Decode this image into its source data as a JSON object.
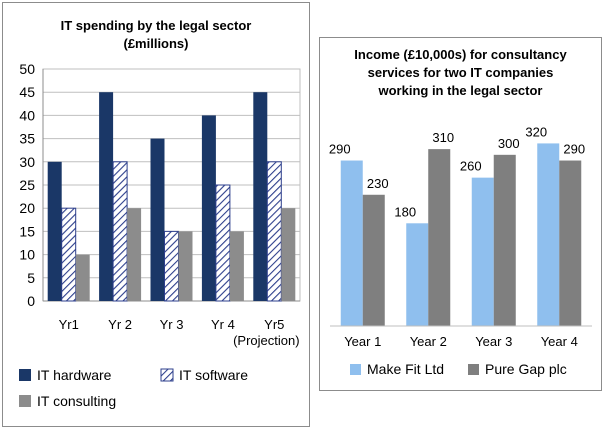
{
  "chart_data": [
    {
      "type": "bar",
      "title_lines": [
        "IT spending by the legal sector",
        "(£millions)"
      ],
      "categories": [
        "Yr1",
        "Yr 2",
        "Yr 3",
        "Yr 4",
        "Yr5"
      ],
      "category_note": "(Projection)",
      "series": [
        {
          "name": "IT hardware",
          "values": [
            30,
            45,
            35,
            40,
            45
          ],
          "color": "#1a3767",
          "pattern": "solid"
        },
        {
          "name": "IT software",
          "values": [
            20,
            30,
            15,
            25,
            30
          ],
          "color": "#2d3f8c",
          "pattern": "hatch"
        },
        {
          "name": "IT consulting",
          "values": [
            10,
            20,
            15,
            15,
            20
          ],
          "color": "#8c8c8c",
          "pattern": "solid"
        }
      ],
      "ylim": [
        0,
        50
      ],
      "yticks": [
        0,
        5,
        10,
        15,
        20,
        25,
        30,
        35,
        40,
        45,
        50
      ],
      "grid": true,
      "legend": "bottom"
    },
    {
      "type": "bar",
      "title_lines": [
        "Income (£10,000s)  for consultancy",
        "services for two IT companies",
        "working in the legal sector"
      ],
      "categories": [
        "Year 1",
        "Year 2",
        "Year 3",
        "Year 4"
      ],
      "series": [
        {
          "name": "Make Fit Ltd",
          "values": [
            290,
            180,
            260,
            320
          ],
          "color": "#8fbfee"
        },
        {
          "name": "Pure Gap plc",
          "values": [
            230,
            310,
            300,
            290
          ],
          "color": "#7f7f7f"
        }
      ],
      "ylim": [
        0,
        340
      ],
      "data_labels": true,
      "grid": false,
      "legend": "bottom"
    }
  ]
}
